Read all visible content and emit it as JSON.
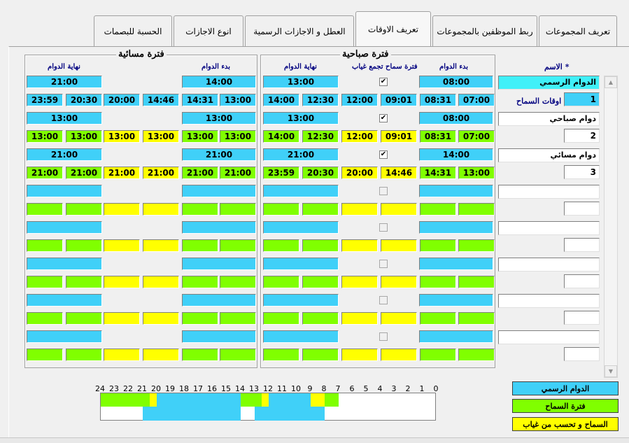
{
  "tabs": [
    "تعريف المجموعات",
    "ربط الموظفين بالمجموعات",
    "تعريف الاوقات",
    "العطل و الاجازات الرسمية",
    "انوع الاجازات",
    "الحسبة للبصمات"
  ],
  "labels": {
    "name": "الاسم *",
    "allowance": "اوقات السماح",
    "morning": "فترة صباحية",
    "evening": "فترة مسائية",
    "start": "بدء الدوام",
    "end": "نهاية الدوام",
    "absence_allowance": "فترة سماح تجمع غياب"
  },
  "groups": [
    {
      "name": "الدوام الرسمي",
      "id": "1",
      "m_shift": [
        "08:00",
        "13:00"
      ],
      "m_check": true,
      "m_times": [
        "07:00",
        "08:31",
        "09:01",
        "12:00",
        "12:30",
        "14:00"
      ],
      "e_shift": [
        "14:00",
        "21:00"
      ],
      "e_times": [
        "13:00",
        "14:31",
        "14:46",
        "20:00",
        "20:30",
        "23:59"
      ]
    },
    {
      "name": "دوام صباحي",
      "id": "2",
      "m_shift": [
        "08:00",
        "13:00"
      ],
      "m_check": true,
      "m_times": [
        "07:00",
        "08:31",
        "09:01",
        "12:00",
        "12:30",
        "14:00"
      ],
      "e_shift": [
        "13:00",
        "13:00"
      ],
      "e_times": [
        "13:00",
        "13:00",
        "13:00",
        "13:00",
        "13:00",
        "13:00"
      ]
    },
    {
      "name": "دوام مسائي",
      "id": "3",
      "m_shift": [
        "14:00",
        "21:00"
      ],
      "m_check": true,
      "m_times": [
        "13:00",
        "14:31",
        "14:46",
        "20:00",
        "20:30",
        "23:59"
      ],
      "e_shift": [
        "21:00",
        "21:00"
      ],
      "e_times": [
        "21:00",
        "21:00",
        "21:00",
        "21:00",
        "21:00",
        "21:00"
      ]
    }
  ],
  "empty_rows": 5,
  "timeline": {
    "hours": [
      "24",
      "23",
      "22",
      "21",
      "20",
      "19",
      "18",
      "17",
      "16",
      "15",
      "14",
      "13",
      "12",
      "11",
      "10",
      "9",
      "8",
      "7",
      "6",
      "5",
      "4",
      "3",
      "2",
      "1",
      "0"
    ],
    "allowance_segments": [
      {
        "from": 7,
        "to": 8,
        "kind": "green"
      },
      {
        "from": 8,
        "to": 9,
        "kind": "yellow"
      },
      {
        "from": 9,
        "to": 12,
        "kind": "blue"
      },
      {
        "from": 12,
        "to": 12.5,
        "kind": "yellow"
      },
      {
        "from": 12.5,
        "to": 14,
        "kind": "green"
      },
      {
        "from": 14,
        "to": 20,
        "kind": "blue"
      },
      {
        "from": 20,
        "to": 20.5,
        "kind": "yellow"
      },
      {
        "from": 20.5,
        "to": 24,
        "kind": "green"
      }
    ],
    "shift_segments": [
      {
        "from": 8,
        "to": 13
      },
      {
        "from": 14,
        "to": 21
      }
    ]
  },
  "legend": [
    "الدوام الرسمي",
    "فترة السماح",
    "السماح و تحسب من غياب"
  ],
  "colors": {
    "blue": "#40d0f8",
    "green": "#80ff00",
    "yellow": "#ffff00"
  }
}
